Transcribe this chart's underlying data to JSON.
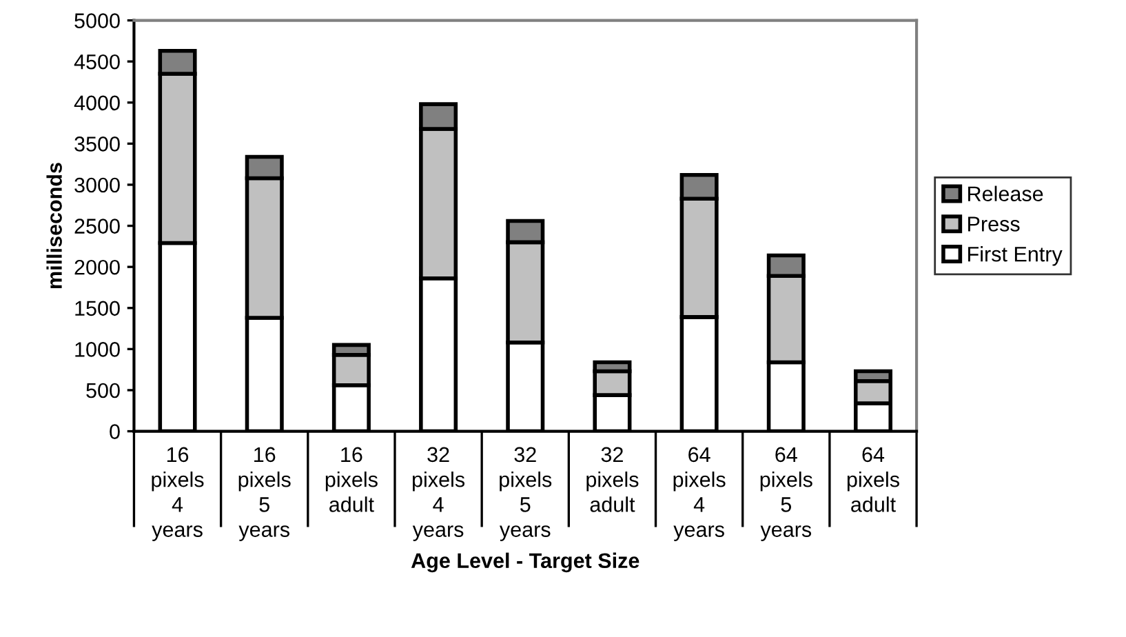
{
  "chart_data": {
    "type": "bar",
    "stacked": true,
    "xlabel": "Age Level - Target Size",
    "ylabel": "milliseconds",
    "categories": [
      "16\npixels\n4\nyears",
      "16\npixels\n5\nyears",
      "16\npixels\nadult",
      "32\npixels\n4\nyears",
      "32\npixels\n5\nyears",
      "32\npixels\nadult",
      "64\npixels\n4\nyears",
      "64\npixels\n5\nyears",
      "64\npixels\nadult"
    ],
    "series": [
      {
        "name": "First Entry",
        "color": "#ffffff",
        "values": [
          2290,
          1380,
          560,
          1860,
          1080,
          440,
          1390,
          840,
          340
        ]
      },
      {
        "name": "Press",
        "color": "#c0c0c0",
        "values": [
          2060,
          1700,
          370,
          1820,
          1220,
          290,
          1440,
          1050,
          270
        ]
      },
      {
        "name": "Release",
        "color": "#808080",
        "values": [
          280,
          260,
          120,
          300,
          260,
          110,
          290,
          250,
          120
        ]
      }
    ],
    "ylim": [
      0,
      5000
    ],
    "yticks": [
      0,
      500,
      1000,
      1500,
      2000,
      2500,
      3000,
      3500,
      4000,
      4500,
      5000
    ],
    "grid": false,
    "legend": "right"
  }
}
